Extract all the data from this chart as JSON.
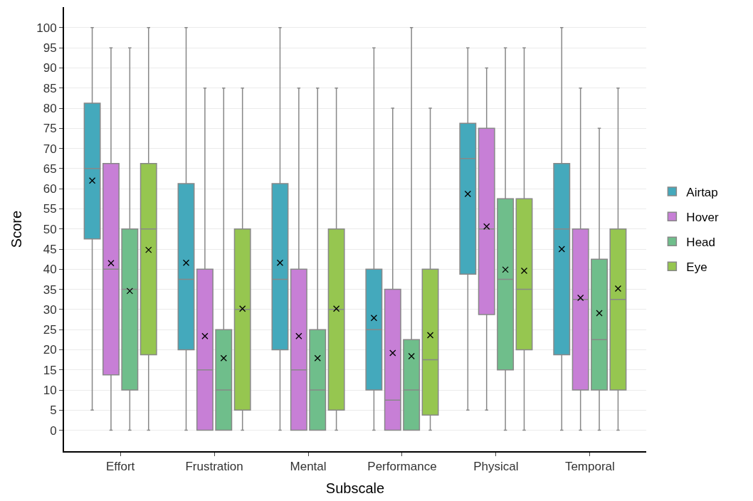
{
  "chart_data": {
    "type": "box",
    "xlabel": "Subscale",
    "ylabel": "Score",
    "categories": [
      "Effort",
      "Frustration",
      "Mental",
      "Performance",
      "Physical",
      "Temporal"
    ],
    "series": [
      {
        "name": "Airtap",
        "color": "#44a9bc",
        "boxes": [
          {
            "low": 5,
            "q1": 47.5,
            "median": 65,
            "q3": 81.25,
            "high": 100,
            "mean": 62
          },
          {
            "low": 0,
            "q1": 20,
            "median": 37.5,
            "q3": 61.25,
            "high": 100,
            "mean": 41.6
          },
          {
            "low": 0,
            "q1": 20,
            "median": 37.5,
            "q3": 61.25,
            "high": 100,
            "mean": 41.6
          },
          {
            "low": 0,
            "q1": 10,
            "median": 25,
            "q3": 40,
            "high": 95,
            "mean": 27.9
          },
          {
            "low": 5,
            "q1": 38.75,
            "median": 67.5,
            "q3": 76.25,
            "high": 95,
            "mean": 58.7
          },
          {
            "low": 0,
            "q1": 18.75,
            "median": 50,
            "q3": 66.25,
            "high": 100,
            "mean": 45
          }
        ]
      },
      {
        "name": "Hover",
        "color": "#c77fd6",
        "boxes": [
          {
            "low": 0,
            "q1": 13.75,
            "median": 40,
            "q3": 66.25,
            "high": 95,
            "mean": 41.5
          },
          {
            "low": 0,
            "q1": 0,
            "median": 15,
            "q3": 40,
            "high": 85,
            "mean": 23.4
          },
          {
            "low": 0,
            "q1": 0,
            "median": 15,
            "q3": 40,
            "high": 85,
            "mean": 23.4
          },
          {
            "low": 0,
            "q1": 0,
            "median": 7.5,
            "q3": 35,
            "high": 80,
            "mean": 19.2
          },
          {
            "low": 5,
            "q1": 28.75,
            "median": 50,
            "q3": 75,
            "high": 90,
            "mean": 50.6
          },
          {
            "low": 0,
            "q1": 10,
            "median": 32.5,
            "q3": 50,
            "high": 85,
            "mean": 32.9
          }
        ]
      },
      {
        "name": "Head",
        "color": "#6fbe8b",
        "boxes": [
          {
            "low": 0,
            "q1": 10,
            "median": 35,
            "q3": 50,
            "high": 95,
            "mean": 34.6
          },
          {
            "low": 0,
            "q1": 0,
            "median": 10,
            "q3": 25,
            "high": 85,
            "mean": 17.9
          },
          {
            "low": 0,
            "q1": 0,
            "median": 10,
            "q3": 25,
            "high": 85,
            "mean": 17.9
          },
          {
            "low": 0,
            "q1": 0,
            "median": 10,
            "q3": 22.5,
            "high": 100,
            "mean": 18.4
          },
          {
            "low": 0,
            "q1": 15,
            "median": 37.5,
            "q3": 57.5,
            "high": 95,
            "mean": 39.9
          },
          {
            "low": 0,
            "q1": 10,
            "median": 22.5,
            "q3": 42.5,
            "high": 75,
            "mean": 29.1
          }
        ]
      },
      {
        "name": "Eye",
        "color": "#96c650",
        "boxes": [
          {
            "low": 0,
            "q1": 18.75,
            "median": 50,
            "q3": 66.25,
            "high": 100,
            "mean": 44.8
          },
          {
            "low": 0,
            "q1": 5,
            "median": 30,
            "q3": 50,
            "high": 85,
            "mean": 30.2
          },
          {
            "low": 0,
            "q1": 5,
            "median": 30,
            "q3": 50,
            "high": 85,
            "mean": 30.2
          },
          {
            "low": 0,
            "q1": 3.75,
            "median": 17.5,
            "q3": 40,
            "high": 80,
            "mean": 23.6
          },
          {
            "low": 0,
            "q1": 20,
            "median": 35,
            "q3": 57.5,
            "high": 95,
            "mean": 39.6
          },
          {
            "low": 0,
            "q1": 10,
            "median": 32.5,
            "q3": 50,
            "high": 85,
            "mean": 35.2
          }
        ]
      }
    ],
    "ylim": [
      -5.2,
      105.1
    ],
    "yticks": [
      0,
      5,
      10,
      15,
      20,
      25,
      30,
      35,
      40,
      45,
      50,
      55,
      60,
      65,
      70,
      75,
      80,
      85,
      90,
      95,
      100
    ],
    "grid": "y",
    "legend": "right",
    "marker": "cross"
  }
}
